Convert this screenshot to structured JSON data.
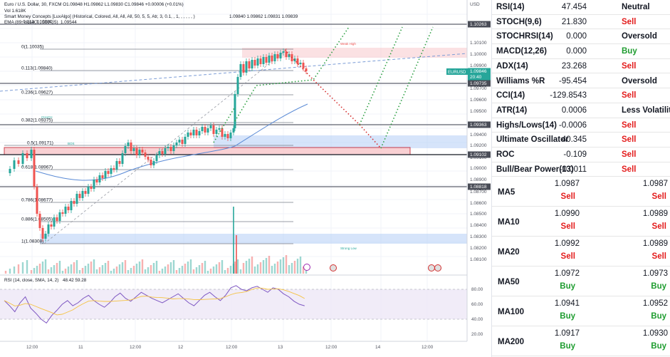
{
  "legend": {
    "line1": "Euro / U.S. Dollar, 30, FXCM  O1.09848  H1.09862  L1.09830  C1.09846  +0.00006 (+0.01%)",
    "vol": "Vol  1.618K",
    "smc": "Smart Money Concepts [LuxAlgo] (Historical, Colored, All, All, All, 50, 5, 5, Atr, 3, 0.1, , 1, , , , , , )",
    "smc_vals": "1.09840  1.09862  1.09831  1.09839",
    "ema": "EMA (89, close, 0, SMA, 5)",
    "ema_val": "1.09544",
    "rsi": "RSI (14, close, SMA, 14, 2)",
    "rsi_vals": "48.42  59.28"
  },
  "price_axis": {
    "currency": "USD",
    "ticks": [
      "1.10100",
      "1.10000",
      "1.09900",
      "1.09700",
      "1.09600",
      "1.09500",
      "1.09400",
      "1.09200",
      "1.09100",
      "1.09000",
      "1.08900",
      "1.08700",
      "1.08600",
      "1.08500",
      "1.08400",
      "1.08300",
      "1.08200",
      "1.08100"
    ],
    "boxes": [
      {
        "text": "1.10263",
        "style": "dark"
      },
      {
        "text": "1.09846",
        "style": "green"
      },
      {
        "text": "20:40",
        "style": "green"
      },
      {
        "text": "1.09735",
        "style": "dark"
      },
      {
        "text": "1.09363",
        "style": "dark"
      },
      {
        "text": "1.09102",
        "style": "dark"
      },
      {
        "text": "1.08818",
        "style": "dark"
      }
    ],
    "rsi_ticks": [
      "80.00",
      "60.00",
      "40.00",
      "20.00"
    ]
  },
  "time_axis": [
    "12:00",
    "11",
    "12:00",
    "12",
    "12:00",
    "13",
    "12:00",
    "14",
    "12:00"
  ],
  "fib_levels": [
    "-0.113(1.10230)",
    "0(1.10035)",
    "0.113(1.09840)",
    "0.236(1.09627)",
    "0.382(1.09375)",
    "0.5(1.09171)",
    "0.618(1.08967)",
    "0.786(1.08677)",
    "0.886(1.08505)",
    "1(1.08308)"
  ],
  "symbol_tag": "EURUSD",
  "small_labels": {
    "choch": "CHoCH",
    "bos": "BOS",
    "strong_low": "Strong Low",
    "weak_high": "Weak High"
  },
  "indicators": [
    {
      "name": "RSI(14)",
      "value": "47.454",
      "action": "Neutral",
      "class": "neutral"
    },
    {
      "name": "STOCH(9,6)",
      "value": "21.830",
      "action": "Sell",
      "class": "sell"
    },
    {
      "name": "STOCHRSI(14)",
      "value": "0.000",
      "action": "Oversold",
      "class": "neutral"
    },
    {
      "name": "MACD(12,26)",
      "value": "0.000",
      "action": "Buy",
      "class": "buy"
    },
    {
      "name": "ADX(14)",
      "value": "23.268",
      "action": "Sell",
      "class": "sell"
    },
    {
      "name": "Williams %R",
      "value": "-95.454",
      "action": "Oversold",
      "class": "neutral"
    },
    {
      "name": "CCI(14)",
      "value": "-129.8543",
      "action": "Sell",
      "class": "sell"
    },
    {
      "name": "ATR(14)",
      "value": "0.0006",
      "action": "Less Volatility",
      "class": "neutral"
    },
    {
      "name": "Highs/Lows(14)",
      "value": "-0.0006",
      "action": "Sell",
      "class": "sell"
    },
    {
      "name": "Ultimate Oscillator",
      "value": "40.345",
      "action": "Sell",
      "class": "sell"
    },
    {
      "name": "ROC",
      "value": "-0.109",
      "action": "Sell",
      "class": "sell"
    },
    {
      "name": "Bull/Bear Power(13)",
      "value": "-0.0011",
      "action": "Sell",
      "class": "sell"
    }
  ],
  "moving_averages": [
    {
      "name": "MA5",
      "simple": "1.0987",
      "simple_action": "Sell",
      "simple_class": "sell",
      "exp": "1.0987",
      "exp_action": "Sell",
      "exp_class": "sell"
    },
    {
      "name": "MA10",
      "simple": "1.0990",
      "simple_action": "Sell",
      "simple_class": "sell",
      "exp": "1.0989",
      "exp_action": "Sell",
      "exp_class": "sell"
    },
    {
      "name": "MA20",
      "simple": "1.0992",
      "simple_action": "Sell",
      "simple_class": "sell",
      "exp": "1.0989",
      "exp_action": "Sell",
      "exp_class": "sell"
    },
    {
      "name": "MA50",
      "simple": "1.0972",
      "simple_action": "Buy",
      "simple_class": "buy",
      "exp": "1.0973",
      "exp_action": "Buy",
      "exp_class": "buy"
    },
    {
      "name": "MA100",
      "simple": "1.0941",
      "simple_action": "Buy",
      "simple_class": "buy",
      "exp": "1.0952",
      "exp_action": "Buy",
      "exp_class": "buy"
    },
    {
      "name": "MA200",
      "simple": "1.0917",
      "simple_action": "Buy",
      "simple_class": "buy",
      "exp": "1.0930",
      "exp_action": "Buy",
      "exp_class": "buy"
    }
  ],
  "colors": {
    "up": "#26a69a",
    "down": "#ef5350",
    "sell": "#e31b1b",
    "buy": "#1e9c2f"
  }
}
